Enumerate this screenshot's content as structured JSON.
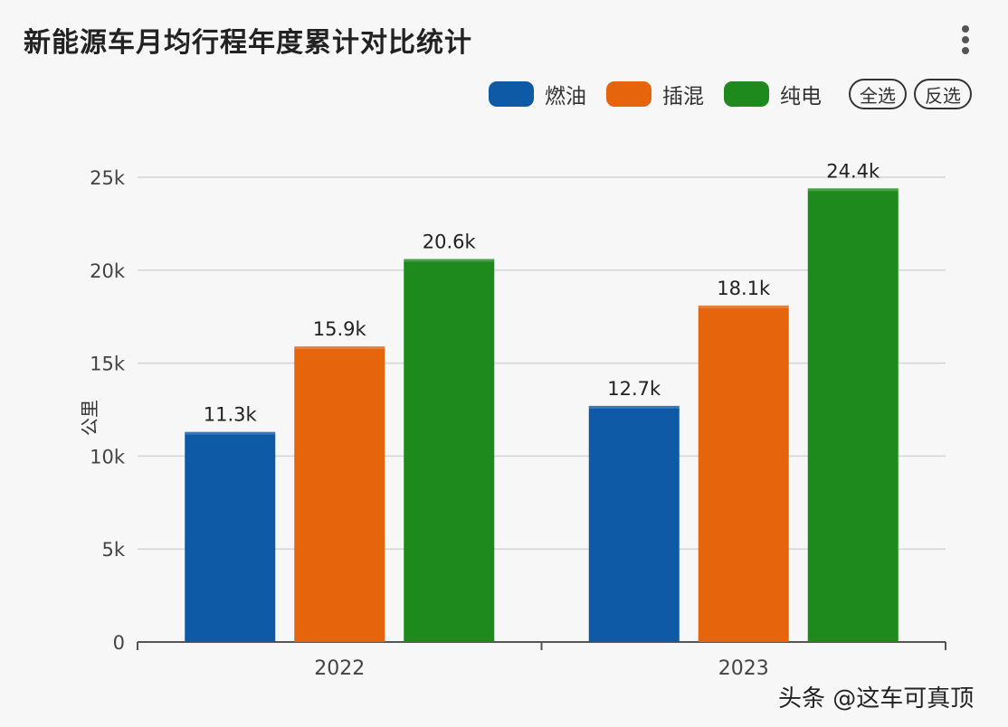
{
  "header": {
    "title": "新能源车月均行程年度累计对比统计",
    "more_icon": "more-vertical-icon"
  },
  "legend": {
    "items": [
      {
        "label": "燃油",
        "color": "#0e5aa6"
      },
      {
        "label": "插混",
        "color": "#e5640c"
      },
      {
        "label": "纯电",
        "color": "#1e8a1e"
      }
    ],
    "select_all_label": "全选",
    "invert_label": "反选"
  },
  "chart_data": {
    "type": "bar",
    "title": "新能源车月均行程年度累计对比统计",
    "categories": [
      "2022",
      "2023"
    ],
    "series": [
      {
        "name": "燃油",
        "values": [
          11.3,
          12.7
        ],
        "labels": [
          "11.3k",
          "12.7k"
        ],
        "color": "#0e5aa6"
      },
      {
        "name": "插混",
        "values": [
          15.9,
          18.1
        ],
        "labels": [
          "15.9k",
          "18.1k"
        ],
        "color": "#e5640c"
      },
      {
        "name": "纯电",
        "values": [
          20.6,
          24.4
        ],
        "labels": [
          "20.6k",
          "24.4k"
        ],
        "color": "#1e8a1e"
      }
    ],
    "ylabel": "公里",
    "ylim": [
      0,
      25
    ],
    "yticks": [
      0,
      5,
      10,
      15,
      20,
      25
    ],
    "ytick_labels": [
      "0",
      "5k",
      "10k",
      "15k",
      "20k",
      "25k"
    ],
    "grid": true,
    "legend": "top-right"
  },
  "watermark": "头条 @这车可真顶"
}
